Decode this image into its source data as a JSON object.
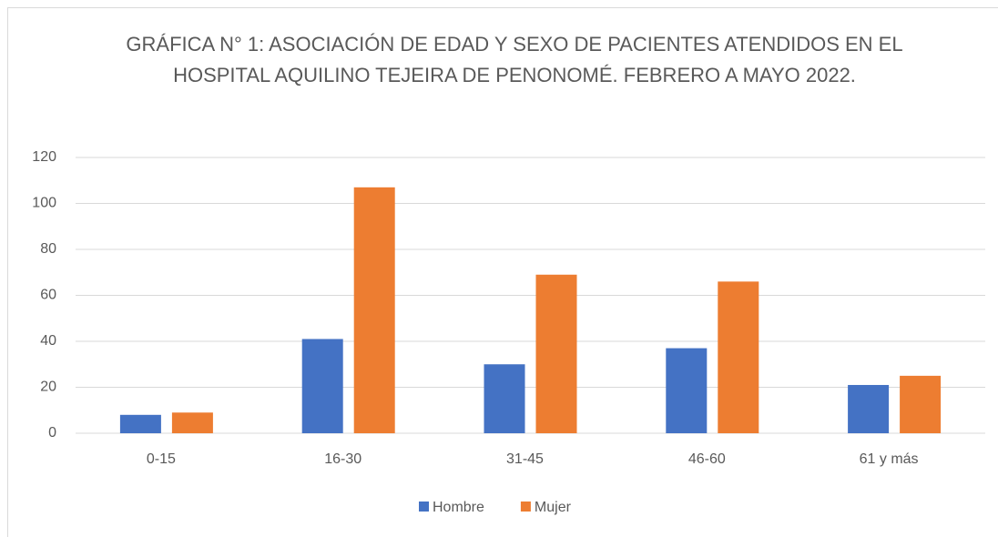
{
  "chart_data": {
    "type": "bar",
    "title": "GRÁFICA N° 1: ASOCIACIÓN DE EDAD Y SEXO DE PACIENTES ATENDIDOS EN EL HOSPITAL AQUILINO TEJEIRA DE PENONOMÉ. FEBRERO A MAYO 2022.",
    "categories": [
      "0-15",
      "16-30",
      "31-45",
      "46-60",
      "61 y más"
    ],
    "series": [
      {
        "name": "Hombre",
        "color": "#4472c4",
        "values": [
          8,
          41,
          30,
          37,
          21
        ]
      },
      {
        "name": "Mujer",
        "color": "#ed7d31",
        "values": [
          9,
          107,
          69,
          66,
          25
        ]
      }
    ],
    "ylim": [
      0,
      120
    ],
    "yticks": [
      0,
      20,
      40,
      60,
      80,
      100,
      120
    ],
    "grid": true,
    "legend": "bottom"
  }
}
